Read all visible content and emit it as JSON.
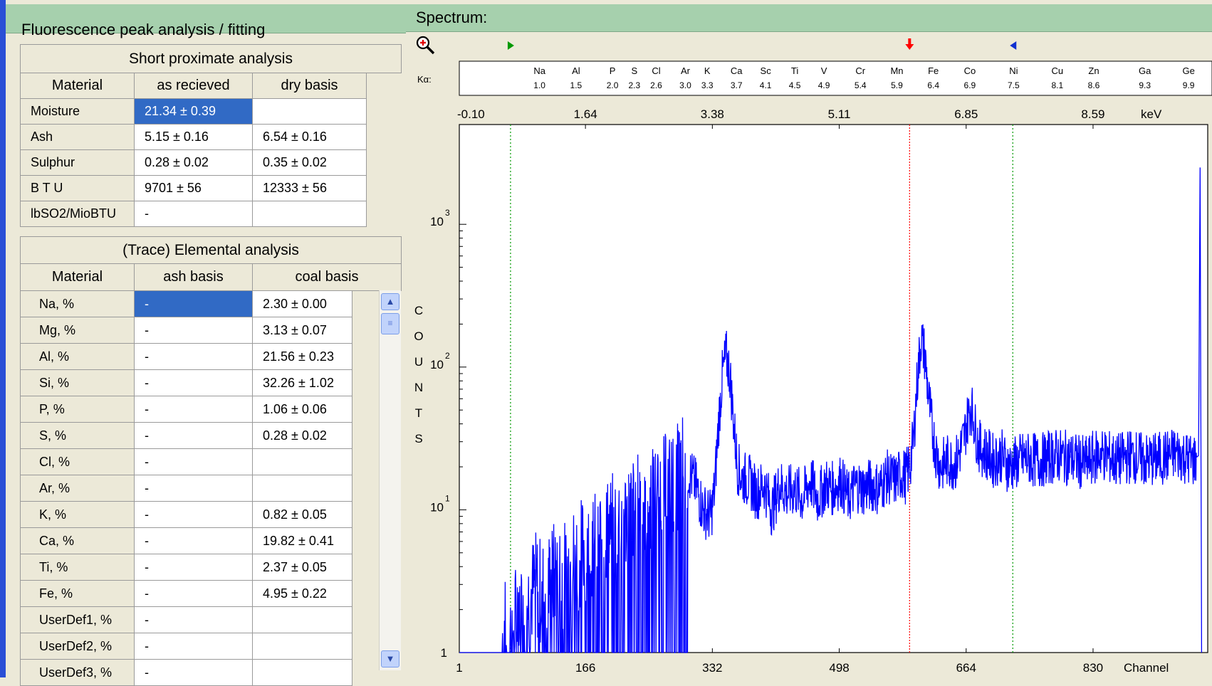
{
  "left_panel": {
    "title": "Fluorescence peak analysis / fitting",
    "proximate": {
      "section_title": "Short proximate analysis",
      "headers": [
        "Material",
        "as recieved",
        "dry basis"
      ],
      "rows": [
        {
          "label": "Moisture",
          "as_received": "21.34 ± 0.39",
          "dry_basis": ""
        },
        {
          "label": "Ash",
          "as_received": "5.15 ± 0.16",
          "dry_basis": "6.54 ± 0.16"
        },
        {
          "label": "Sulphur",
          "as_received": "0.28 ± 0.02",
          "dry_basis": "0.35 ± 0.02"
        },
        {
          "label": "B T U",
          "as_received": "9701 ± 56",
          "dry_basis": "12333 ± 56"
        },
        {
          "label": "lbSO2/MioBTU",
          "as_received": "-",
          "dry_basis": ""
        }
      ]
    },
    "elemental": {
      "section_title": "(Trace) Elemental analysis",
      "headers": [
        "Material",
        "ash basis",
        "coal basis"
      ],
      "rows": [
        {
          "label": "Na, %",
          "ash_basis": "-",
          "coal_basis": "2.30 ± 0.00"
        },
        {
          "label": "Mg, %",
          "ash_basis": "-",
          "coal_basis": "3.13 ± 0.07"
        },
        {
          "label": "Al, %",
          "ash_basis": "-",
          "coal_basis": "21.56 ± 0.23"
        },
        {
          "label": "Si, %",
          "ash_basis": "-",
          "coal_basis": "32.26 ± 1.02"
        },
        {
          "label": "P, %",
          "ash_basis": "-",
          "coal_basis": "1.06 ± 0.06"
        },
        {
          "label": "S, %",
          "ash_basis": "-",
          "coal_basis": "0.28 ± 0.02"
        },
        {
          "label": "Cl, %",
          "ash_basis": "-",
          "coal_basis": ""
        },
        {
          "label": "Ar, %",
          "ash_basis": "-",
          "coal_basis": ""
        },
        {
          "label": "K, %",
          "ash_basis": "-",
          "coal_basis": "0.82 ± 0.05"
        },
        {
          "label": "Ca, %",
          "ash_basis": "-",
          "coal_basis": "19.82 ± 0.41"
        },
        {
          "label": "Ti, %",
          "ash_basis": "-",
          "coal_basis": "2.37 ± 0.05"
        },
        {
          "label": "Fe, %",
          "ash_basis": "-",
          "coal_basis": "4.95 ± 0.22"
        },
        {
          "label": "UserDef1, %",
          "ash_basis": "-",
          "coal_basis": ""
        },
        {
          "label": "UserDef2, %",
          "ash_basis": "-",
          "coal_basis": ""
        },
        {
          "label": "UserDef3, %",
          "ash_basis": "-",
          "coal_basis": ""
        }
      ]
    }
  },
  "right_panel": {
    "title": "Spectrum:",
    "zoom_icon": "zoom-in-icon",
    "colors": {
      "spectrum": "#0000ff",
      "roi_marker": "#009900",
      "cursor": "#ff0000",
      "header_bg": "#a6d0ad"
    }
  },
  "chart_data": {
    "type": "line",
    "ka_label": "Kα:",
    "elements": [
      {
        "symbol": "Na",
        "energy": "1.0"
      },
      {
        "symbol": "Al",
        "energy": "1.5"
      },
      {
        "symbol": "P",
        "energy": "2.0"
      },
      {
        "symbol": "S",
        "energy": "2.3"
      },
      {
        "symbol": "Cl",
        "energy": "2.6"
      },
      {
        "symbol": "Ar",
        "energy": "3.0"
      },
      {
        "symbol": "K",
        "energy": "3.3"
      },
      {
        "symbol": "Ca",
        "energy": "3.7"
      },
      {
        "symbol": "Sc",
        "energy": "4.1"
      },
      {
        "symbol": "Ti",
        "energy": "4.5"
      },
      {
        "symbol": "V",
        "energy": "4.9"
      },
      {
        "symbol": "Cr",
        "energy": "5.4"
      },
      {
        "symbol": "Mn",
        "energy": "5.9"
      },
      {
        "symbol": "Fe",
        "energy": "6.4"
      },
      {
        "symbol": "Co",
        "energy": "6.9"
      },
      {
        "symbol": "Ni",
        "energy": "7.5"
      },
      {
        "symbol": "Cu",
        "energy": "8.1"
      },
      {
        "symbol": "Zn",
        "energy": "8.6"
      },
      {
        "symbol": "Ga",
        "energy": "9.3"
      },
      {
        "symbol": "Ge",
        "energy": "9.9"
      }
    ],
    "kev_ticks": [
      "-0.10",
      "1.64",
      "3.38",
      "5.11",
      "6.85",
      "8.59"
    ],
    "kev_unit": "keV",
    "channel_ticks": [
      "1",
      "166",
      "332",
      "498",
      "664",
      "830"
    ],
    "xlabel": "Channel",
    "ylabel": "COUNTS",
    "yscale": "log",
    "ylim": [
      1,
      5000
    ],
    "xlim": [
      1,
      980
    ],
    "y_ticks": [
      {
        "base": "1",
        "exp": ""
      },
      {
        "base": "10",
        "exp": "1"
      },
      {
        "base": "10",
        "exp": "2"
      },
      {
        "base": "10",
        "exp": "3"
      }
    ],
    "markers": {
      "roi_start_channel": 68,
      "cursor_channel": 590,
      "roi_end_channel": 725
    },
    "series": [
      {
        "channels": [
          1,
          20,
          40,
          50,
          56,
          60,
          64,
          68,
          75,
          80,
          90,
          100,
          110,
          120,
          130,
          140,
          150,
          160,
          170,
          180,
          190,
          200,
          210,
          220,
          230,
          240,
          250,
          260,
          270,
          280,
          290,
          295,
          300,
          310,
          320,
          330,
          335,
          340,
          345,
          350,
          355,
          360,
          365,
          370,
          380,
          390,
          400,
          410,
          420,
          430,
          440,
          450,
          460,
          470,
          480,
          490,
          500,
          510,
          520,
          530,
          540,
          550,
          560,
          570,
          580,
          585,
          590,
          595,
          600,
          605,
          610,
          615,
          620,
          625,
          630,
          640,
          650,
          660,
          670,
          680,
          690,
          700,
          710,
          720,
          740,
          760,
          780,
          800,
          820,
          840,
          860,
          880,
          900,
          920,
          940,
          960,
          968,
          970,
          972
        ],
        "counts": [
          1,
          1,
          1,
          1,
          1,
          1.5,
          1.2,
          1.3,
          1.8,
          2.5,
          2.2,
          3.0,
          2.6,
          3.2,
          3.8,
          3.5,
          4.5,
          5,
          6,
          5.5,
          7,
          7.5,
          8.5,
          9,
          10,
          12,
          11,
          13,
          14,
          15,
          18,
          22,
          19,
          15,
          10,
          9,
          14,
          40,
          85,
          120,
          90,
          40,
          20,
          17,
          16,
          13,
          15,
          10,
          15,
          13,
          14,
          12,
          16,
          12,
          15,
          14,
          16,
          12,
          15,
          14,
          15,
          14,
          17,
          16,
          18,
          17,
          20,
          30,
          80,
          160,
          120,
          60,
          35,
          25,
          20,
          22,
          21,
          30,
          55,
          28,
          25,
          22,
          24,
          20,
          23,
          22,
          24,
          23,
          21,
          25,
          22,
          24,
          22,
          23,
          25,
          22,
          24,
          2500,
          1
        ]
      }
    ]
  }
}
